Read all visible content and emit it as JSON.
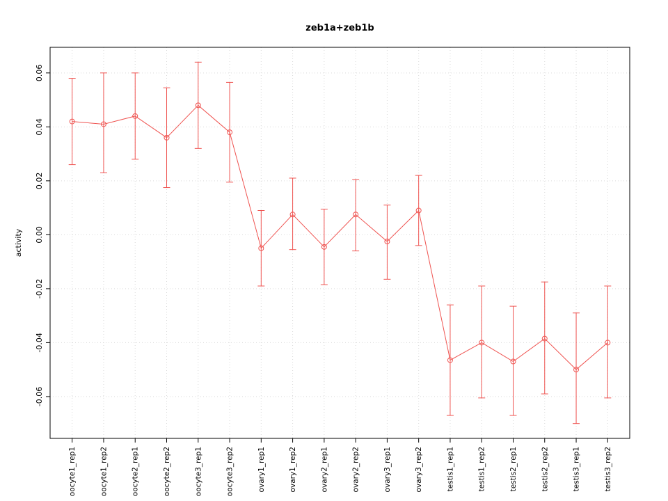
{
  "chart_data": {
    "type": "line",
    "title": "zeb1a+zeb1b",
    "xlabel": "",
    "ylabel": "activity",
    "categories": [
      "oocyte1_rep1",
      "oocyte1_rep2",
      "oocyte2_rep1",
      "oocyte2_rep2",
      "oocyte3_rep1",
      "oocyte3_rep2",
      "ovary1_rep1",
      "ovary1_rep2",
      "ovary2_rep1",
      "ovary2_rep2",
      "ovary3_rep1",
      "ovary3_rep2",
      "testis1_rep1",
      "testis1_rep2",
      "testis2_rep1",
      "testis2_rep2",
      "testis3_rep1",
      "testis3_rep2"
    ],
    "series": [
      {
        "name": "activity",
        "values": [
          0.042,
          0.041,
          0.044,
          0.036,
          0.048,
          0.038,
          -0.005,
          0.0075,
          -0.0045,
          0.0075,
          -0.0025,
          0.009,
          -0.0465,
          -0.04,
          -0.047,
          -0.0385,
          -0.05,
          -0.04
        ],
        "error_low": [
          0.026,
          0.023,
          0.028,
          0.0175,
          0.032,
          0.0195,
          -0.019,
          -0.0055,
          -0.0185,
          -0.006,
          -0.0165,
          -0.004,
          -0.067,
          -0.0605,
          -0.067,
          -0.059,
          -0.07,
          -0.0605
        ],
        "error_high": [
          0.058,
          0.06,
          0.06,
          0.0545,
          0.064,
          0.0565,
          0.009,
          0.021,
          0.0095,
          0.0205,
          0.011,
          0.022,
          -0.026,
          -0.019,
          -0.0265,
          -0.0175,
          -0.029,
          -0.019
        ]
      }
    ],
    "ylim": [
      -0.0755,
      0.0695
    ],
    "yticks": [
      -0.06,
      -0.04,
      -0.02,
      0.0,
      0.02,
      0.04,
      0.06
    ],
    "ytick_labels": [
      "-0.06",
      "-0.04",
      "-0.02",
      "0.00",
      "0.02",
      "0.04",
      "0.06"
    ],
    "grid": "dotted",
    "legend": "none",
    "marker": "open-circle",
    "colors": {
      "series": "#ef5350",
      "grid": "#d9d9d9",
      "axis": "#000000",
      "background": "#ffffff"
    }
  }
}
